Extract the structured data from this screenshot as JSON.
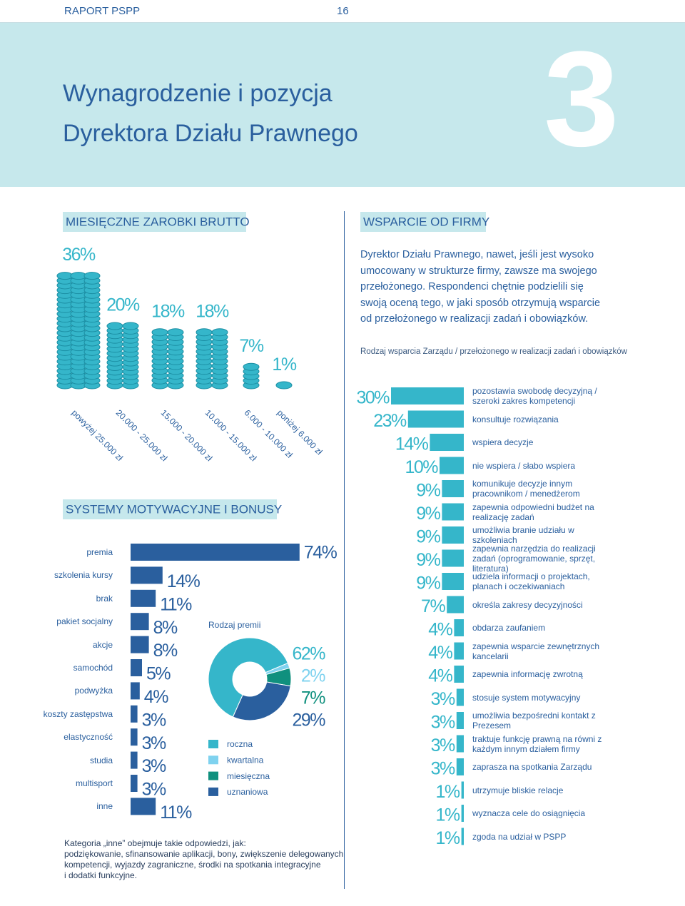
{
  "header": {
    "report": "RAPORT PSPP",
    "page": "16",
    "title": [
      "Wynagrodzenie i pozycja",
      "Dyrektora Działu Prawnego"
    ],
    "chapter": "3"
  },
  "support_intro": "Dyrektor Działu Prawnego, nawet, jeśli jest wysoko umocowany w strukturze firmy, zawsze ma swojego przełożonego. Respondenci chętnie podzielili się swoją oceną tego, w jaki sposób otrzymują wsparcie od przełożonego w realizacji zadań i obowiązków.",
  "footnote": [
    "Kategoria „inne” obejmuje takie odpowiedzi, jak:",
    "podziękowanie, sfinansowanie aplikacji, bony, zwiększenie delegowanych",
    "kompetencji, wyjazdy zagraniczne, środki na spotkania integracyjne",
    "i dodatki funkcyjne."
  ],
  "chart_data": [
    {
      "type": "coins",
      "title": "MIESIĘCZNE ZAROBKI BRUTTO",
      "categories": [
        "powyżej 25.000 zł",
        "20.000 - 25.000 zł",
        "15.000 - 20.000 zł",
        "10.000 - 15.000 zł",
        "6.000 - 10.000 zł",
        "poniżej 6.000 zł"
      ],
      "values": [
        36,
        20,
        18,
        18,
        7,
        1
      ],
      "value_labels": [
        "36%",
        "20%",
        "18%",
        "18%",
        "7%",
        "1%"
      ],
      "color": "#35b6ca"
    },
    {
      "type": "hbar",
      "title": "SYSTEMY MOTYWACYJNE I BONUSY",
      "categories": [
        "premia",
        "szkolenia kursy",
        "brak",
        "pakiet socjalny",
        "akcje",
        "samochód",
        "podwyżka",
        "koszty zastępstwa",
        "elastyczność",
        "studia",
        "multisport",
        "inne"
      ],
      "values": [
        74,
        14,
        11,
        8,
        8,
        5,
        4,
        3,
        3,
        3,
        3,
        11
      ],
      "value_labels": [
        "74%",
        "14%",
        "11%",
        "8%",
        "8%",
        "5%",
        "4%",
        "3%",
        "3%",
        "3%",
        "3%",
        "11%"
      ],
      "color": "#2a5f9e"
    },
    {
      "type": "donut",
      "title": "Rodzaj premii",
      "categories": [
        "roczna",
        "kwartalna",
        "miesięczna",
        "uznaniowa"
      ],
      "values": [
        62,
        2,
        7,
        29
      ],
      "value_labels": [
        "62%",
        "2%",
        "7%",
        "29%"
      ],
      "colors": [
        "#35b6ca",
        "#7fd2ef",
        "#10907e",
        "#2a5f9e"
      ]
    },
    {
      "type": "support",
      "title": "WSPARCIE OD FIRMY",
      "subtitle": "Rodzaj wsparcia Zarządu / przełożonego w realizacji zadań i obowiązków",
      "categories": [
        "pozostawia swobodę decyzyjną / szeroki zakres kompetencji",
        "konsultuje rozwiązania",
        "wspiera decyzje",
        "nie wspiera / słabo wspiera",
        "komunikuje decyzje innym pracownikom / menedżerom",
        "zapewnia odpowiedni budżet na realizację zadań",
        "umożliwia branie udziału w szkoleniach",
        "zapewnia narzędzia do realizacji zadań (oprogramowanie, sprzęt, literatura)",
        "udziela informacji o projektach, planach i oczekiwaniach",
        "określa zakresy decyzyjności",
        "obdarza zaufaniem",
        "zapewnia wsparcie zewnętrznych kancelarii",
        "zapewnia informację zwrotną",
        "stosuje system motywacyjny",
        "umożliwia bezpośredni kontakt z Prezesem",
        "traktuje funkcję prawną na równi z każdym innym działem firmy",
        "zaprasza na spotkania Zarządu",
        "utrzymuje bliskie relacje",
        "wyznacza cele do osiągnięcia",
        "zgoda na udział w PSPP"
      ],
      "values": [
        30,
        23,
        14,
        10,
        9,
        9,
        9,
        9,
        9,
        7,
        4,
        4,
        4,
        3,
        3,
        3,
        3,
        1,
        1,
        1
      ],
      "value_labels": [
        "30%",
        "23%",
        "14%",
        "10%",
        "9%",
        "9%",
        "9%",
        "9%",
        "9%",
        "7%",
        "4%",
        "4%",
        "4%",
        "3%",
        "3%",
        "3%",
        "3%",
        "1%",
        "1%",
        "1%"
      ],
      "color": "#35b6ca"
    }
  ]
}
